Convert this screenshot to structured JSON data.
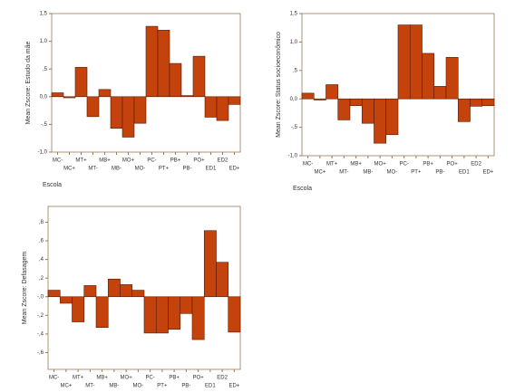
{
  "chart_data": [
    {
      "type": "bar",
      "y_label": "Mean Zscore:  Estudo da mãe",
      "x_label": "Escola",
      "color": "#c4420c",
      "categories": [
        "MC-",
        "MC+",
        "MT+",
        "MT-",
        "MB+",
        "MB-",
        "MO+",
        "MO-",
        "PC-",
        "PT+",
        "PB+",
        "PB-",
        "PO+",
        "ED1",
        "ED2",
        "ED+"
      ],
      "values": [
        0.07,
        -0.02,
        0.53,
        -0.36,
        0.13,
        -0.57,
        -0.73,
        -0.48,
        1.27,
        1.2,
        0.6,
        0.02,
        0.73,
        -0.37,
        -0.43,
        -0.14
      ],
      "ylim": [
        -1.0,
        1.5
      ],
      "yticks": [
        {
          "value": 1.5,
          "label": "1,5"
        },
        {
          "value": 1.0,
          "label": "1,0"
        },
        {
          "value": 0.5,
          "label": ",5"
        },
        {
          "value": 0,
          "label": "0,0"
        },
        {
          "value": -0.5,
          "label": "-,5"
        },
        {
          "value": -1.0,
          "label": "-1,0"
        }
      ]
    },
    {
      "type": "bar",
      "y_label": "Mean Zscore:  Status socioeconômico",
      "x_label": "Escola",
      "color": "#c4420c",
      "categories": [
        "MC-",
        "MC+",
        "MT+",
        "MT-",
        "MB+",
        "MB-",
        "MO+",
        "MO-",
        "PC-",
        "PT+",
        "PB+",
        "PB-",
        "PO+",
        "ED1",
        "ED2",
        "ED+"
      ],
      "values": [
        0.1,
        -0.02,
        0.25,
        -0.37,
        -0.12,
        -0.43,
        -0.78,
        -0.63,
        1.3,
        1.3,
        0.8,
        0.22,
        0.73,
        -0.4,
        -0.13,
        -0.12
      ],
      "ylim": [
        -1.0,
        1.5
      ],
      "yticks": [
        {
          "value": 1.5,
          "label": "1,5"
        },
        {
          "value": 1.0,
          "label": "1,0"
        },
        {
          "value": 0.5,
          "label": ",5"
        },
        {
          "value": 0,
          "label": "0,0"
        },
        {
          "value": -0.5,
          "label": "-,5"
        },
        {
          "value": -1.0,
          "label": "-1,0"
        }
      ]
    },
    {
      "type": "bar",
      "y_label": "Mean Zscore:  Defasagem",
      "x_label": "Escola",
      "color": "#c4420c",
      "categories": [
        "MC-",
        "MC+",
        "MT+",
        "MT-",
        "MB+",
        "MB-",
        "MO+",
        "MO-",
        "PC-",
        "PT+",
        "PB+",
        "PB-",
        "PO+",
        "ED1",
        "ED2",
        "ED+"
      ],
      "values": [
        0.07,
        -0.07,
        -0.27,
        0.12,
        -0.33,
        0.19,
        0.13,
        0.07,
        -0.39,
        -0.39,
        -0.35,
        -0.18,
        -0.46,
        0.71,
        0.37,
        -0.38
      ],
      "ylim": [
        -0.78,
        0.97
      ],
      "yticks": [
        {
          "value": 0.8,
          "label": ",8"
        },
        {
          "value": 0.6,
          "label": ",6"
        },
        {
          "value": 0.4,
          "label": ",4"
        },
        {
          "value": 0.2,
          "label": ",2"
        },
        {
          "value": 0,
          "label": "-,0"
        },
        {
          "value": -0.2,
          "label": "-,2"
        },
        {
          "value": -0.4,
          "label": "-,4"
        },
        {
          "value": -0.6,
          "label": "-,6"
        }
      ]
    }
  ]
}
